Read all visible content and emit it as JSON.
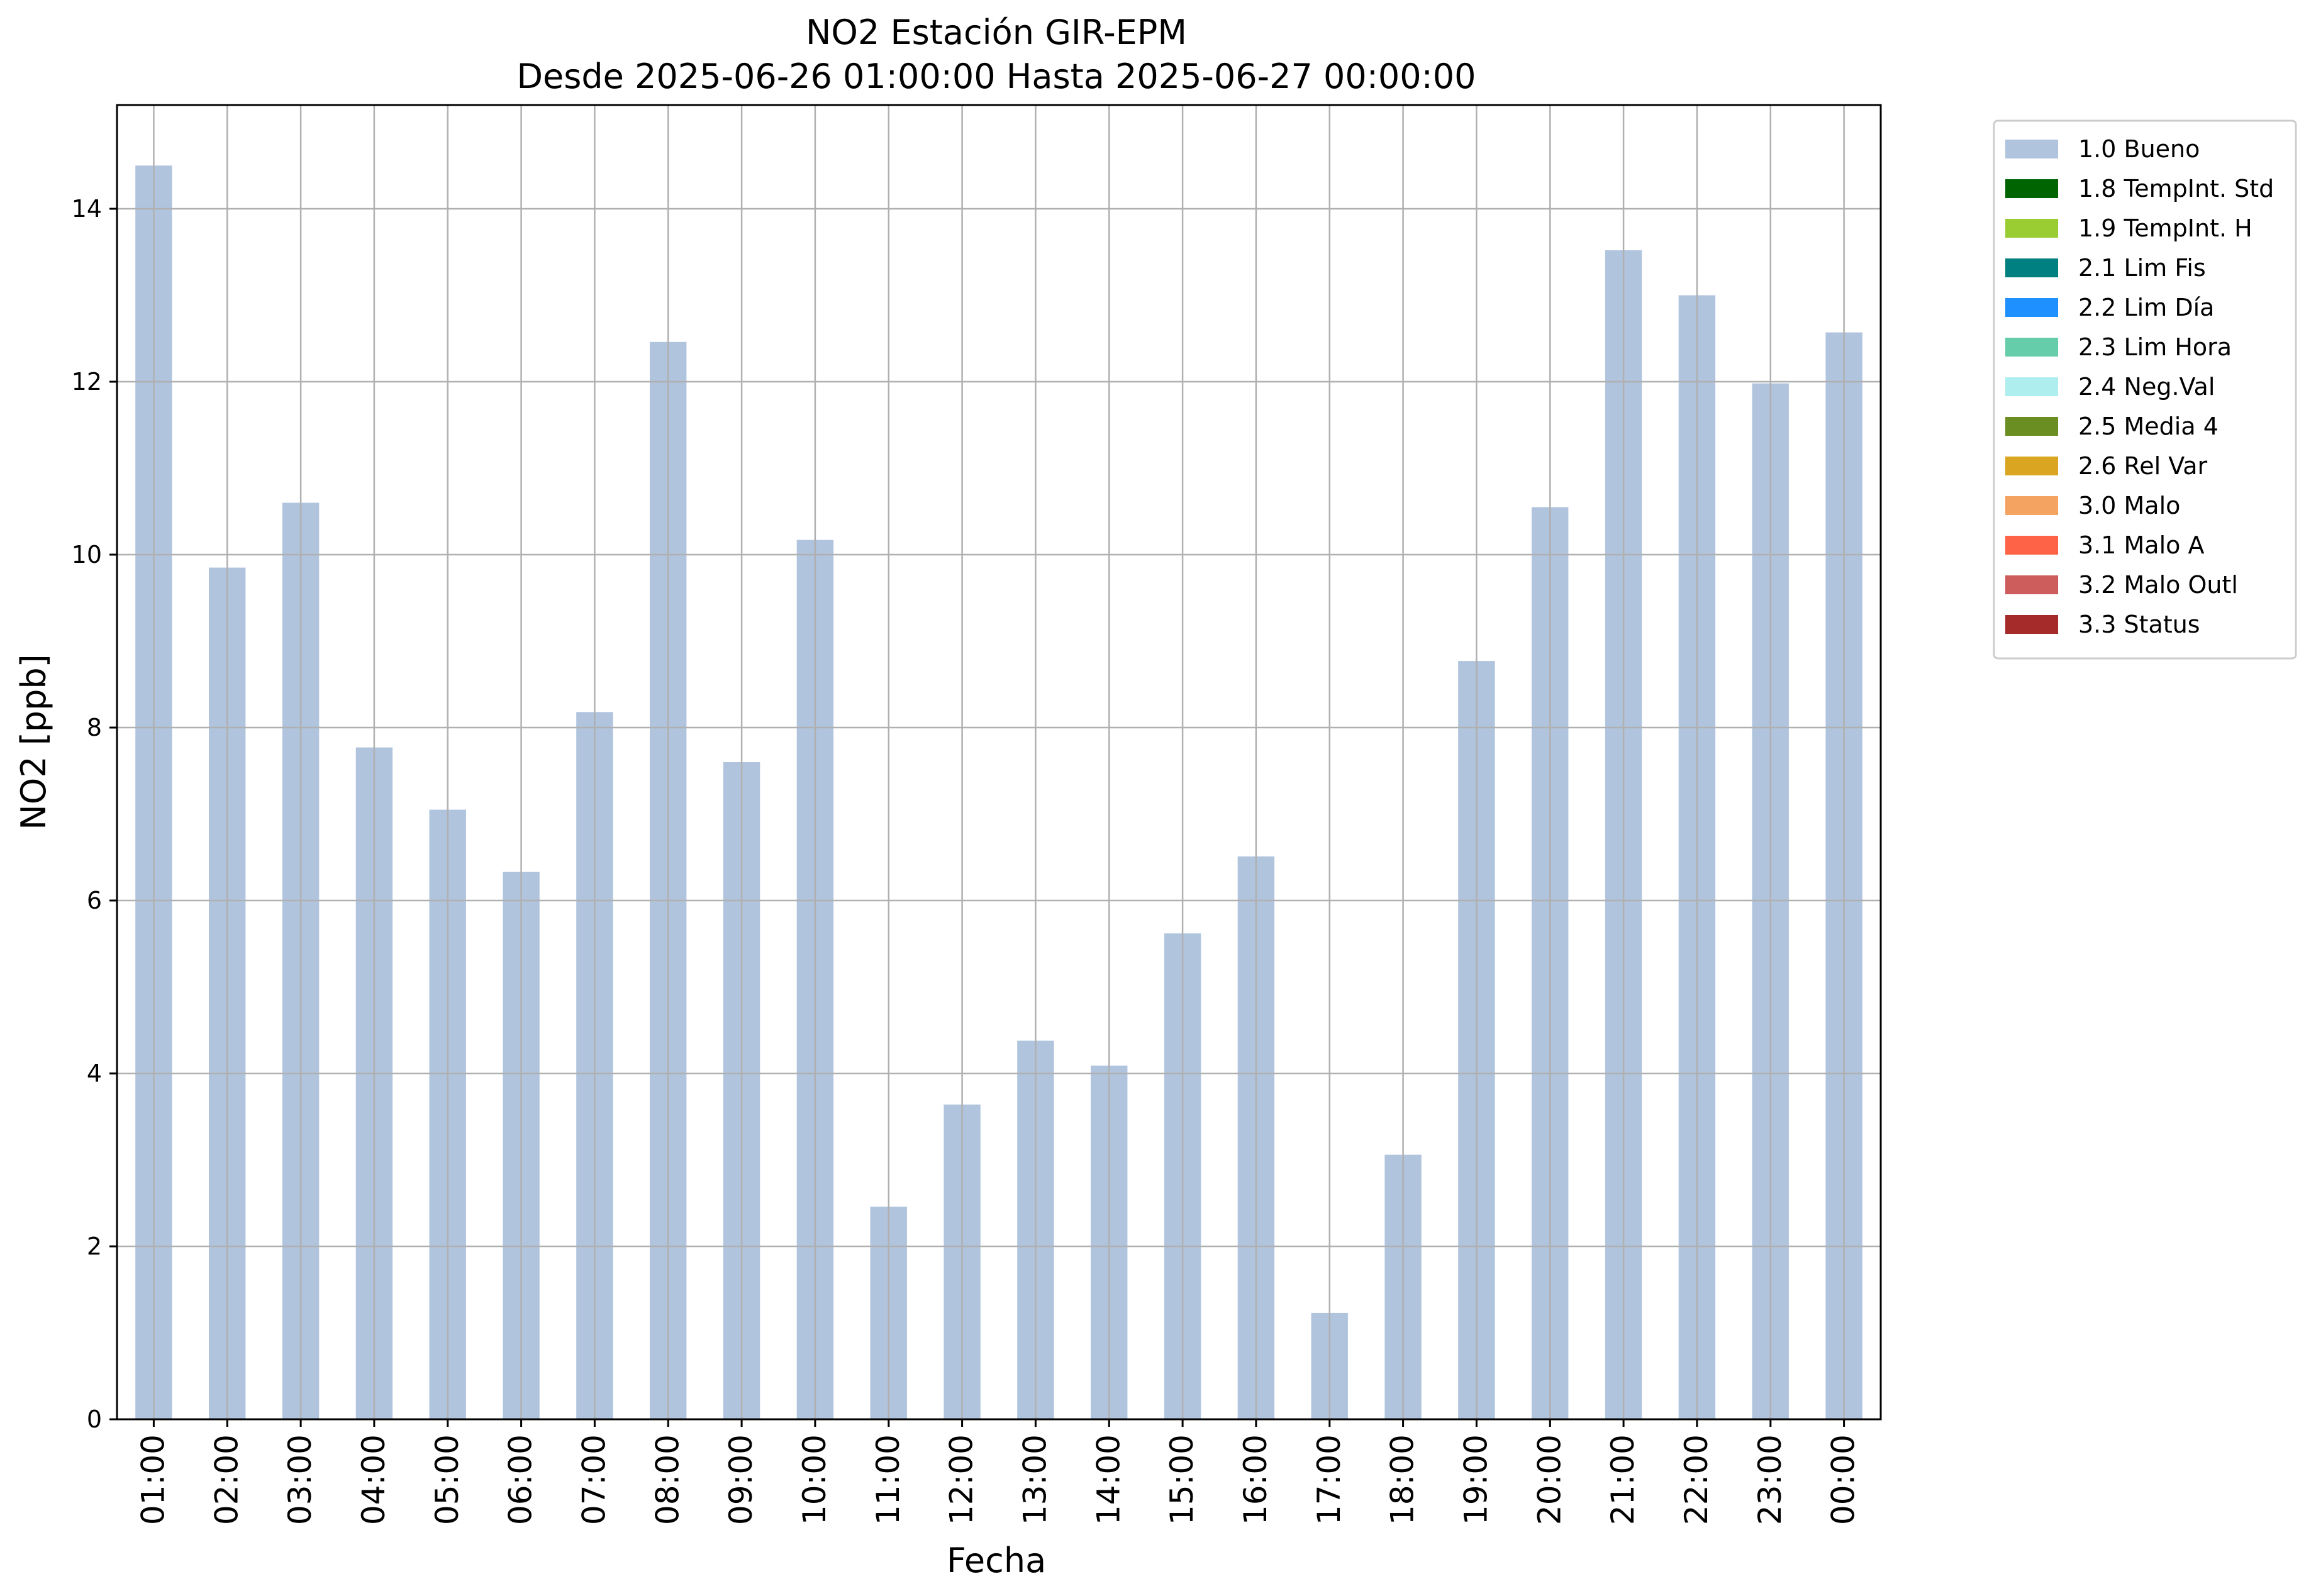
{
  "chart_data": {
    "type": "bar",
    "title": "NO2 Estación GIR-EPM",
    "subtitle": "Desde 2025-06-26 01:00:00 Hasta 2025-06-27 00:00:00",
    "xlabel": "Fecha",
    "ylabel": "NO2 [ppb]",
    "categories": [
      "01:00",
      "02:00",
      "03:00",
      "04:00",
      "05:00",
      "06:00",
      "07:00",
      "08:00",
      "09:00",
      "10:00",
      "11:00",
      "12:00",
      "13:00",
      "14:00",
      "15:00",
      "16:00",
      "17:00",
      "18:00",
      "19:00",
      "20:00",
      "21:00",
      "22:00",
      "23:00",
      "00:00"
    ],
    "series": [
      {
        "name": "1.0 Bueno",
        "color": "#b0c4de",
        "values": [
          14.5,
          9.85,
          10.6,
          7.77,
          7.05,
          6.33,
          8.18,
          12.46,
          7.6,
          10.17,
          2.46,
          3.64,
          4.38,
          4.09,
          5.62,
          6.51,
          1.23,
          3.06,
          8.77,
          10.55,
          13.52,
          13.0,
          11.98,
          12.57
        ]
      }
    ],
    "ylim": [
      0,
      15.2
    ],
    "yticks": [
      0,
      2,
      4,
      6,
      8,
      10,
      12,
      14
    ],
    "grid": true,
    "legend_position": "outside-top-right",
    "legend": [
      {
        "label": "1.0 Bueno",
        "color": "#b0c4de"
      },
      {
        "label": "1.8 TempInt. Std",
        "color": "#006400"
      },
      {
        "label": "1.9 TempInt. H",
        "color": "#9acd32"
      },
      {
        "label": "2.1 Lim Fis",
        "color": "#008080"
      },
      {
        "label": "2.2 Lim Día",
        "color": "#1e90ff"
      },
      {
        "label": "2.3 Lim Hora",
        "color": "#66cdaa"
      },
      {
        "label": "2.4 Neg.Val",
        "color": "#afeeee"
      },
      {
        "label": "2.5 Media 4",
        "color": "#6b8e23"
      },
      {
        "label": "2.6 Rel Var",
        "color": "#daa520"
      },
      {
        "label": "3.0 Malo",
        "color": "#f4a460"
      },
      {
        "label": "3.1 Malo A",
        "color": "#ff6347"
      },
      {
        "label": "3.2 Malo Outl",
        "color": "#cd5c5c"
      },
      {
        "label": "3.3 Status",
        "color": "#a52a2a"
      }
    ]
  }
}
